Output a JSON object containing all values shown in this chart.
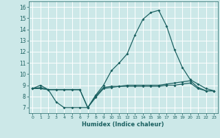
{
  "xlabel": "Humidex (Indice chaleur)",
  "bg_color": "#cce8e8",
  "grid_color": "#ffffff",
  "line_color": "#1a6060",
  "xlim": [
    -0.5,
    23.5
  ],
  "ylim": [
    6.5,
    16.5
  ],
  "yticks": [
    7,
    8,
    9,
    10,
    11,
    12,
    13,
    14,
    15,
    16
  ],
  "xticks": [
    0,
    1,
    2,
    3,
    4,
    5,
    6,
    7,
    8,
    9,
    10,
    11,
    12,
    13,
    14,
    15,
    16,
    17,
    18,
    19,
    20,
    21,
    22,
    23
  ],
  "series": [
    {
      "x": [
        0,
        1,
        2,
        3,
        4,
        5,
        6,
        7,
        8,
        9,
        10,
        11,
        12,
        13,
        14,
        15,
        16,
        17,
        18,
        19,
        20,
        21,
        22,
        23
      ],
      "y": [
        8.7,
        9.0,
        8.6,
        8.6,
        8.6,
        8.6,
        8.6,
        7.0,
        8.1,
        9.0,
        10.3,
        11.0,
        11.8,
        13.5,
        14.9,
        15.5,
        15.7,
        14.3,
        12.2,
        10.6,
        9.5,
        9.1,
        8.7,
        8.5
      ]
    },
    {
      "x": [
        0,
        1,
        2,
        3,
        4,
        5,
        6,
        7,
        8,
        9,
        10,
        11,
        12,
        13,
        14,
        15,
        16,
        17,
        18,
        19,
        20,
        21,
        22,
        23
      ],
      "y": [
        8.7,
        8.8,
        8.6,
        7.5,
        7.0,
        7.0,
        7.0,
        7.0,
        8.0,
        8.8,
        8.9,
        8.9,
        9.0,
        9.0,
        9.0,
        9.0,
        9.0,
        9.1,
        9.2,
        9.3,
        9.4,
        8.8,
        8.5,
        8.5
      ]
    },
    {
      "x": [
        0,
        1,
        2,
        3,
        4,
        5,
        6,
        7,
        8,
        9,
        10,
        11,
        12,
        13,
        14,
        15,
        16,
        17,
        18,
        19,
        20,
        21,
        22,
        23
      ],
      "y": [
        8.7,
        8.7,
        8.6,
        8.6,
        8.6,
        8.6,
        8.6,
        7.0,
        7.9,
        8.7,
        8.8,
        8.9,
        8.9,
        8.9,
        8.9,
        8.9,
        8.9,
        9.0,
        9.0,
        9.1,
        9.2,
        8.7,
        8.5,
        8.5
      ]
    }
  ]
}
